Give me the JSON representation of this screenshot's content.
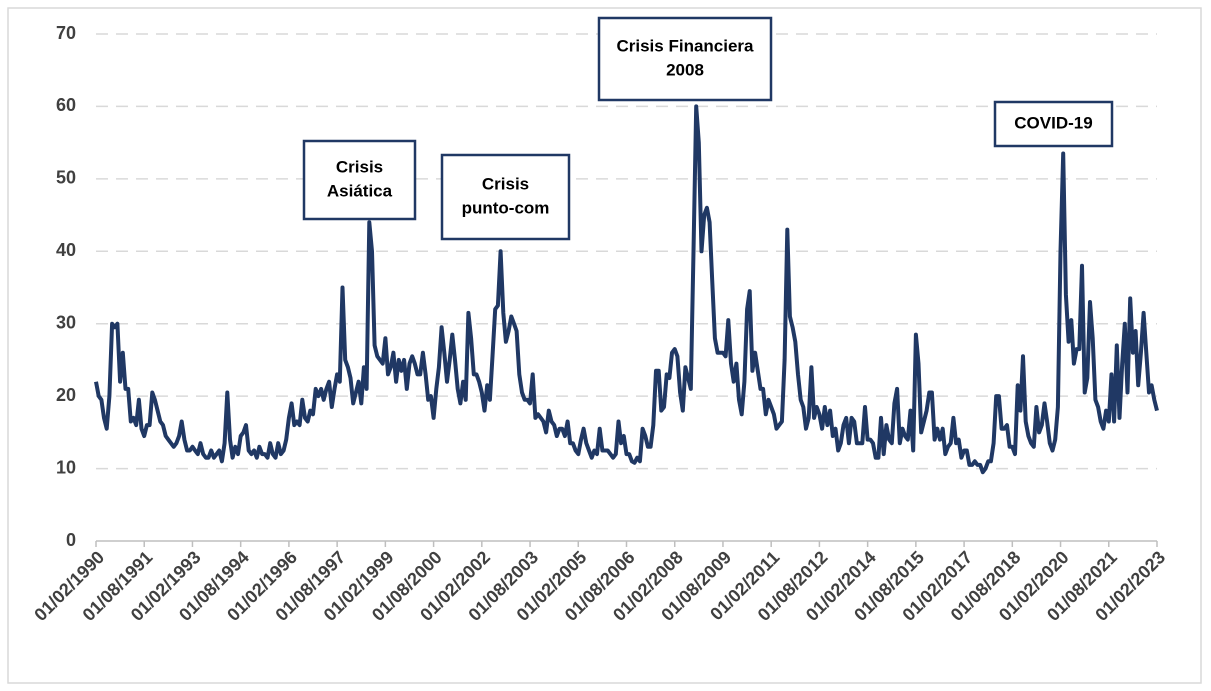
{
  "chart_data": {
    "type": "line",
    "categories": [
      "01/02/1990",
      null,
      null,
      null,
      null,
      null,
      null,
      null,
      null,
      null,
      null,
      null,
      null,
      null,
      null,
      null,
      null,
      null,
      "01/08/1991",
      null,
      null,
      null,
      null,
      null,
      null,
      null,
      null,
      null,
      null,
      null,
      null,
      null,
      null,
      null,
      null,
      null,
      "01/02/1993",
      null,
      null,
      null,
      null,
      null,
      null,
      null,
      null,
      null,
      null,
      null,
      null,
      null,
      null,
      null,
      null,
      null,
      "01/08/1994",
      null,
      null,
      null,
      null,
      null,
      null,
      null,
      null,
      null,
      null,
      null,
      null,
      null,
      null,
      null,
      null,
      null,
      "01/02/1996",
      null,
      null,
      null,
      null,
      null,
      null,
      null,
      null,
      null,
      null,
      null,
      null,
      null,
      null,
      null,
      null,
      null,
      "01/08/1997",
      null,
      null,
      null,
      null,
      null,
      null,
      null,
      null,
      null,
      null,
      null,
      null,
      null,
      null,
      null,
      null,
      null,
      "01/02/1999",
      null,
      null,
      null,
      null,
      null,
      null,
      null,
      null,
      null,
      null,
      null,
      null,
      null,
      null,
      null,
      null,
      null,
      "01/08/2000",
      null,
      null,
      null,
      null,
      null,
      null,
      null,
      null,
      null,
      null,
      null,
      null,
      null,
      null,
      null,
      null,
      null,
      "01/02/2002",
      null,
      null,
      null,
      null,
      null,
      null,
      null,
      null,
      null,
      null,
      null,
      null,
      null,
      null,
      null,
      null,
      null,
      "01/08/2003",
      null,
      null,
      null,
      null,
      null,
      null,
      null,
      null,
      null,
      null,
      null,
      null,
      null,
      null,
      null,
      null,
      null,
      "01/02/2005",
      null,
      null,
      null,
      null,
      null,
      null,
      null,
      null,
      null,
      null,
      null,
      null,
      null,
      null,
      null,
      null,
      null,
      "01/08/2006",
      null,
      null,
      null,
      null,
      null,
      null,
      null,
      null,
      null,
      null,
      null,
      null,
      null,
      null,
      null,
      null,
      null,
      "01/02/2008",
      null,
      null,
      null,
      null,
      null,
      null,
      null,
      null,
      null,
      null,
      null,
      null,
      null,
      null,
      null,
      null,
      null,
      "01/08/2009",
      null,
      null,
      null,
      null,
      null,
      null,
      null,
      null,
      null,
      null,
      null,
      null,
      null,
      null,
      null,
      null,
      null,
      "01/02/2011",
      null,
      null,
      null,
      null,
      null,
      null,
      null,
      null,
      null,
      null,
      null,
      null,
      null,
      null,
      null,
      null,
      null,
      "01/08/2012",
      null,
      null,
      null,
      null,
      null,
      null,
      null,
      null,
      null,
      null,
      null,
      null,
      null,
      null,
      null,
      null,
      null,
      "01/02/2014",
      null,
      null,
      null,
      null,
      null,
      null,
      null,
      null,
      null,
      null,
      null,
      null,
      null,
      null,
      null,
      null,
      null,
      "01/08/2015",
      null,
      null,
      null,
      null,
      null,
      null,
      null,
      null,
      null,
      null,
      null,
      null,
      null,
      null,
      null,
      null,
      null,
      "01/02/2017",
      null,
      null,
      null,
      null,
      null,
      null,
      null,
      null,
      null,
      null,
      null,
      null,
      null,
      null,
      null,
      null,
      null,
      "01/08/2018",
      null,
      null,
      null,
      null,
      null,
      null,
      null,
      null,
      null,
      null,
      null,
      null,
      null,
      null,
      null,
      null,
      null,
      "01/02/2020",
      null,
      null,
      null,
      null,
      null,
      null,
      null,
      null,
      null,
      null,
      null,
      null,
      null,
      null,
      null,
      null,
      null,
      "01/08/2021",
      null,
      null,
      null,
      null,
      null,
      null,
      null,
      null,
      null,
      null,
      null,
      null,
      null,
      null,
      null,
      null,
      null,
      "01/02/2023"
    ],
    "values": [
      22,
      20,
      19.5,
      17,
      15.5,
      20,
      30,
      29.5,
      30,
      22,
      26,
      21,
      21,
      16.5,
      17,
      16,
      19.5,
      15.5,
      14.5,
      16,
      16,
      20.5,
      19.5,
      18,
      16.5,
      16,
      14.5,
      14,
      13.5,
      13,
      13.5,
      14.5,
      16.5,
      14,
      12.5,
      12.5,
      13,
      12.5,
      12,
      13.5,
      12,
      11.5,
      11.5,
      12.5,
      11.5,
      12,
      12.5,
      11,
      13.5,
      20.5,
      14,
      11.5,
      13,
      12,
      14.5,
      15,
      16,
      12.5,
      12,
      12.5,
      11.5,
      13,
      12,
      12,
      11.5,
      13.5,
      12,
      11.5,
      13.5,
      12,
      12.5,
      14,
      17,
      19,
      16,
      16.5,
      16,
      19.5,
      17,
      16.5,
      18,
      17.5,
      21,
      20,
      21,
      19.5,
      21,
      22,
      18.5,
      21,
      23,
      22,
      35,
      25,
      24,
      22.5,
      19,
      20.5,
      22,
      19,
      24,
      21,
      44,
      40,
      27,
      25.5,
      25,
      24.5,
      28,
      23,
      24,
      26,
      22,
      25,
      23.5,
      25,
      21,
      24.5,
      25.5,
      24.5,
      23,
      23,
      26,
      23,
      19.5,
      20,
      17,
      21,
      24,
      29.5,
      26,
      22,
      25,
      28.5,
      25,
      21,
      19,
      22,
      19.5,
      31.5,
      28,
      23,
      23,
      22,
      20.5,
      18,
      21.5,
      19.5,
      25.5,
      32,
      32.5,
      40,
      31.5,
      27.5,
      29,
      31,
      30,
      29,
      23,
      20.5,
      19.5,
      19.5,
      19,
      23,
      17,
      17.5,
      17,
      16.5,
      15,
      18,
      16.5,
      16,
      14.5,
      15.5,
      15.5,
      14.5,
      16.5,
      13.5,
      13.5,
      12.5,
      12,
      14,
      15.5,
      13.5,
      12.5,
      11.5,
      12.5,
      12,
      15.5,
      12.5,
      12.5,
      12.5,
      12,
      11.5,
      12,
      16.5,
      13.5,
      14.5,
      12,
      12,
      11,
      10.8,
      11.5,
      11,
      15.5,
      14.5,
      13,
      13,
      16,
      23.5,
      23.5,
      18,
      18.5,
      23,
      22.5,
      26,
      26.5,
      25.5,
      20.5,
      18,
      24,
      22.5,
      21,
      40,
      60,
      55,
      40,
      45,
      46,
      44,
      36,
      28,
      26,
      26,
      26,
      25.5,
      30.5,
      24.5,
      22,
      24.5,
      19.5,
      17.5,
      22,
      32,
      34.5,
      23.5,
      26,
      23.5,
      21,
      21,
      17.5,
      19.5,
      18.5,
      17.5,
      15.5,
      16,
      16.5,
      25,
      43,
      31,
      29.5,
      27.5,
      23,
      19.5,
      18.5,
      15.5,
      17,
      24,
      17,
      18.5,
      17.5,
      15.5,
      18.5,
      16,
      18,
      14.5,
      15.5,
      12.5,
      13.5,
      16,
      17,
      13.5,
      17,
      16.5,
      13.5,
      13.5,
      13.5,
      18.5,
      14,
      14,
      13.5,
      11.5,
      11.5,
      17,
      12,
      16,
      14,
      13.5,
      19,
      21,
      13.5,
      15.5,
      14.5,
      14,
      18,
      12.5,
      28.5,
      24.5,
      15,
      16.5,
      18,
      20.5,
      20.5,
      14,
      15.5,
      14,
      15.5,
      12,
      13,
      13.5,
      17,
      13.5,
      14,
      11.5,
      12.5,
      12.5,
      10.5,
      10.5,
      11,
      10.5,
      10.5,
      9.5,
      10,
      11,
      11,
      13.5,
      20,
      20,
      15.5,
      15.5,
      16,
      13,
      13,
      12,
      21.5,
      18,
      25.5,
      16.5,
      14.5,
      13.5,
      13,
      18.5,
      15,
      16,
      19,
      16.5,
      13.5,
      12.5,
      14,
      18.5,
      40,
      53.5,
      34,
      27.5,
      30.5,
      24.5,
      26.5,
      26.5,
      38,
      20.5,
      22.5,
      33,
      28,
      19.5,
      18.5,
      16.5,
      15.5,
      18,
      16.5,
      23,
      16.5,
      27,
      17,
      24.5,
      30,
      20.5,
      33.5,
      26,
      29,
      21.5,
      26,
      31.5,
      26,
      20.5,
      21.5,
      19.5,
      18
    ],
    "color": "#203864",
    "ylim": [
      0,
      70
    ],
    "yticks": [
      0,
      10,
      20,
      30,
      40,
      50,
      60,
      70
    ],
    "grid": true,
    "annotations": [
      {
        "lines": [
          "Crisis",
          "Asiática"
        ]
      },
      {
        "lines": [
          "Crisis",
          "punto-com"
        ]
      },
      {
        "lines": [
          "Crisis Financiera",
          "2008"
        ]
      },
      {
        "lines": [
          "COVID-19"
        ]
      }
    ]
  }
}
